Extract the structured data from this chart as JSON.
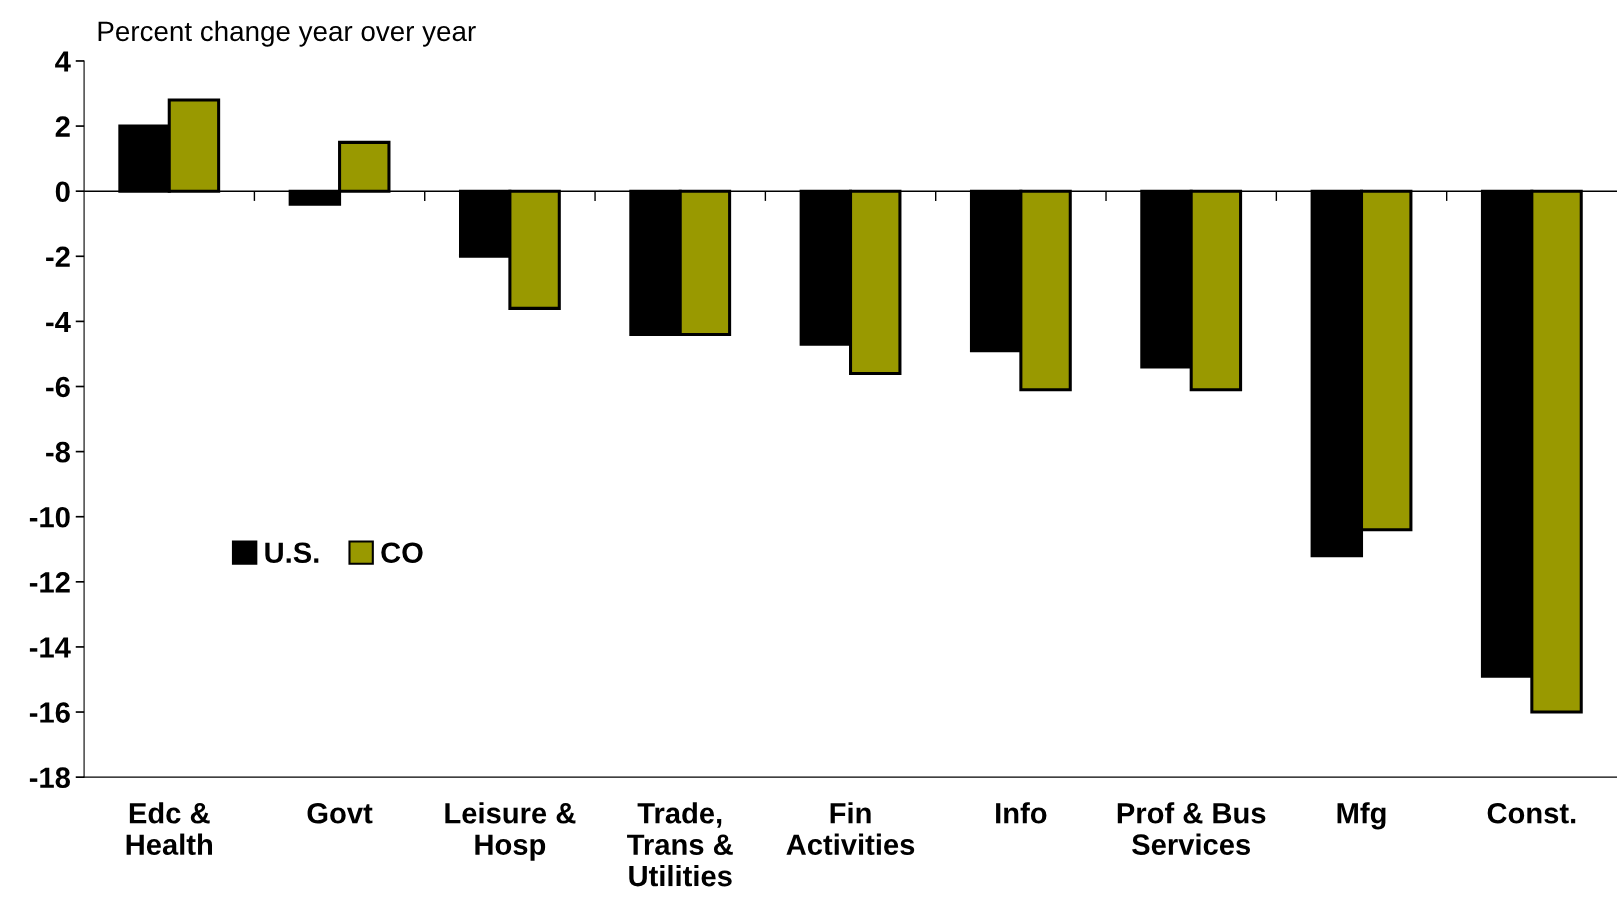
{
  "chart_data": {
    "type": "bar",
    "ylabel": "Percent change year over year",
    "categories": [
      "Edc &\nHealth",
      "Govt",
      "Leisure &\nHosp",
      "Trade,\nTrans &\nUtilities",
      "Fin\nActivities",
      "Info",
      "Prof & Bus\nServices",
      "Mfg",
      "Const."
    ],
    "series": [
      {
        "name": "U.S.",
        "color": "#000000",
        "values": [
          2.0,
          -0.4,
          -2.0,
          -4.4,
          -4.7,
          -4.9,
          -5.4,
          -11.2,
          -14.9
        ]
      },
      {
        "name": "CO",
        "color": "#999900",
        "values": [
          2.8,
          1.5,
          -3.6,
          -4.4,
          -5.6,
          -6.1,
          -6.1,
          -10.4,
          -16.0
        ]
      }
    ],
    "ylim": [
      -18,
      4
    ],
    "yticks": [
      -18,
      -16,
      -14,
      -12,
      -10,
      -8,
      -6,
      -4,
      -2,
      0,
      2,
      4
    ],
    "ref_lines": [
      {
        "axis": "y",
        "value": 0,
        "color": "#000000"
      }
    ],
    "grid": false,
    "legend": "left"
  }
}
